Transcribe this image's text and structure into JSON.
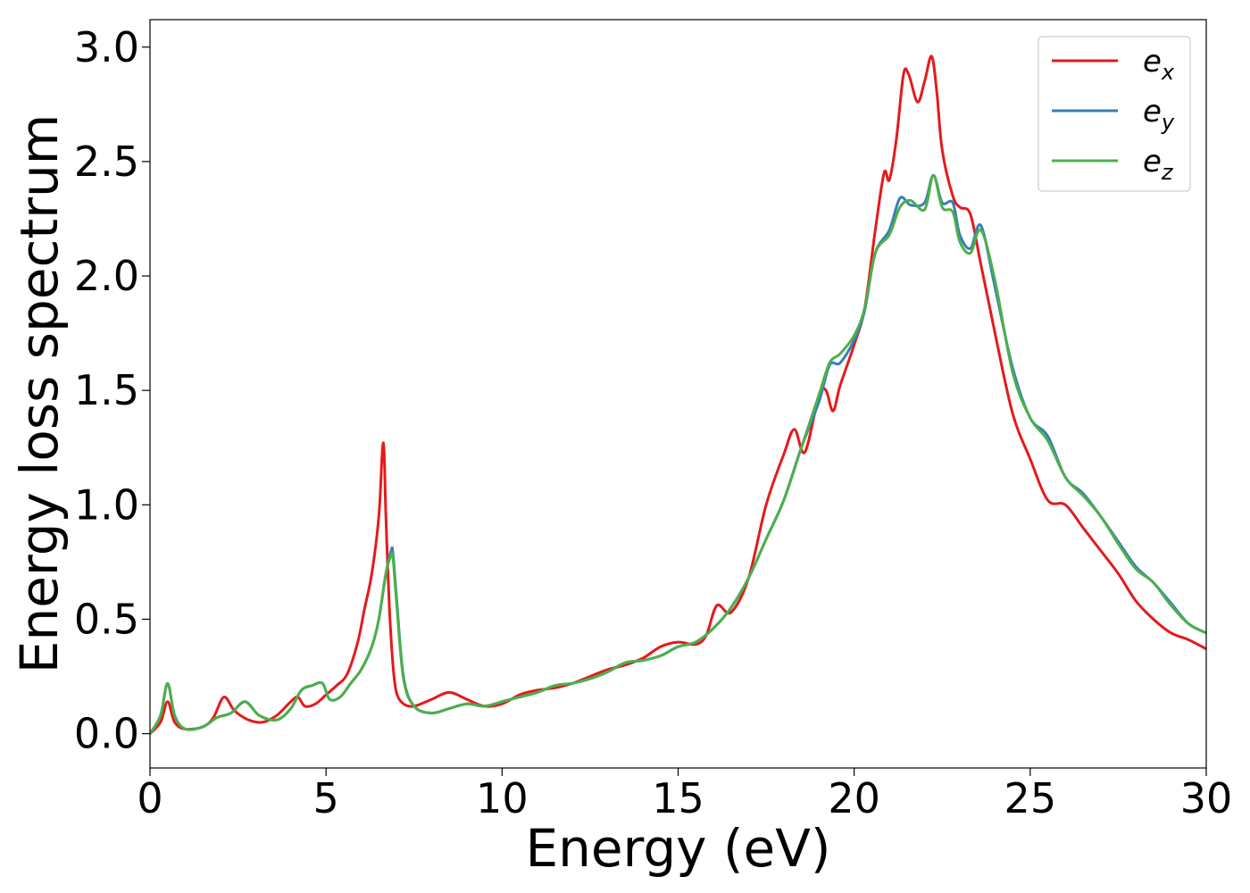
{
  "chart_data": {
    "type": "line",
    "title": "",
    "xlabel": "Energy (eV)",
    "ylabel": "Energy loss spectrum",
    "xlim": [
      0,
      30
    ],
    "ylim": [
      -0.15,
      3.12
    ],
    "xticks": [
      "0",
      "5",
      "10",
      "15",
      "20",
      "25",
      "30"
    ],
    "yticks": [
      "0.0",
      "0.5",
      "1.0",
      "1.5",
      "2.0",
      "2.5",
      "3.0"
    ],
    "grid": false,
    "legend_position": "top-right",
    "series": [
      {
        "name": "e",
        "subscript": "x",
        "color": "#e41a1c",
        "x": [
          0,
          0.3,
          0.5,
          0.7,
          1.0,
          1.5,
          1.8,
          2.1,
          2.4,
          2.8,
          3.2,
          3.6,
          4.0,
          4.2,
          4.4,
          4.7,
          5.0,
          5.3,
          5.6,
          5.9,
          6.1,
          6.3,
          6.5,
          6.6,
          6.65,
          6.7,
          6.8,
          6.9,
          7.0,
          7.2,
          7.5,
          8.0,
          8.5,
          9.0,
          9.5,
          10.0,
          10.5,
          11.0,
          11.5,
          12.0,
          12.5,
          13.0,
          13.5,
          14.0,
          14.5,
          15.0,
          15.5,
          15.8,
          16.1,
          16.5,
          17.0,
          17.5,
          18.0,
          18.3,
          18.6,
          19.0,
          19.2,
          19.4,
          19.6,
          20.0,
          20.3,
          20.6,
          20.85,
          21.0,
          21.2,
          21.4,
          21.55,
          21.8,
          22.0,
          22.2,
          22.35,
          22.5,
          22.8,
          23.0,
          23.3,
          23.6,
          24.0,
          24.5,
          25.0,
          25.5,
          26.0,
          26.5,
          27.0,
          27.5,
          28.0,
          28.5,
          29.0,
          29.5,
          30.0
        ],
        "y": [
          0.0,
          0.05,
          0.14,
          0.05,
          0.02,
          0.03,
          0.07,
          0.16,
          0.1,
          0.06,
          0.05,
          0.08,
          0.14,
          0.16,
          0.12,
          0.13,
          0.17,
          0.21,
          0.26,
          0.4,
          0.55,
          0.7,
          0.95,
          1.24,
          1.23,
          0.95,
          0.55,
          0.3,
          0.18,
          0.13,
          0.12,
          0.15,
          0.18,
          0.15,
          0.12,
          0.13,
          0.17,
          0.19,
          0.2,
          0.22,
          0.25,
          0.28,
          0.3,
          0.33,
          0.38,
          0.4,
          0.39,
          0.43,
          0.56,
          0.53,
          0.68,
          1.0,
          1.22,
          1.33,
          1.23,
          1.48,
          1.5,
          1.41,
          1.52,
          1.7,
          1.86,
          2.2,
          2.45,
          2.42,
          2.6,
          2.88,
          2.88,
          2.76,
          2.85,
          2.96,
          2.8,
          2.55,
          2.35,
          2.3,
          2.27,
          2.05,
          1.75,
          1.4,
          1.2,
          1.02,
          1.0,
          0.9,
          0.8,
          0.7,
          0.58,
          0.5,
          0.44,
          0.41,
          0.37
        ]
      },
      {
        "name": "e",
        "subscript": "y",
        "color": "#377eb8",
        "x": [
          0,
          0.3,
          0.5,
          0.7,
          1.0,
          1.5,
          1.9,
          2.3,
          2.7,
          3.1,
          3.6,
          4.0,
          4.3,
          4.6,
          4.9,
          5.1,
          5.4,
          5.7,
          6.0,
          6.3,
          6.5,
          6.7,
          6.85,
          6.9,
          7.0,
          7.2,
          7.5,
          8.0,
          8.5,
          9.0,
          9.5,
          10.0,
          10.5,
          11.0,
          11.5,
          12.0,
          12.5,
          13.0,
          13.5,
          14.0,
          14.5,
          15.0,
          15.5,
          16.0,
          16.5,
          17.0,
          17.5,
          18.0,
          18.5,
          19.0,
          19.3,
          19.6,
          20.0,
          20.3,
          20.6,
          21.0,
          21.3,
          21.6,
          22.0,
          22.25,
          22.5,
          22.8,
          23.0,
          23.3,
          23.6,
          24.0,
          24.5,
          25.0,
          25.5,
          26.0,
          26.5,
          27.0,
          27.5,
          28.0,
          28.5,
          29.0,
          29.5,
          30.0
        ],
        "y": [
          0.0,
          0.08,
          0.22,
          0.08,
          0.02,
          0.03,
          0.07,
          0.09,
          0.14,
          0.08,
          0.06,
          0.11,
          0.19,
          0.21,
          0.22,
          0.15,
          0.16,
          0.22,
          0.28,
          0.38,
          0.5,
          0.7,
          0.8,
          0.79,
          0.6,
          0.25,
          0.12,
          0.09,
          0.11,
          0.13,
          0.12,
          0.14,
          0.16,
          0.18,
          0.21,
          0.22,
          0.24,
          0.27,
          0.31,
          0.32,
          0.34,
          0.38,
          0.4,
          0.46,
          0.55,
          0.68,
          0.85,
          1.02,
          1.25,
          1.45,
          1.61,
          1.62,
          1.72,
          1.85,
          2.1,
          2.2,
          2.34,
          2.31,
          2.32,
          2.44,
          2.32,
          2.32,
          2.18,
          2.12,
          2.22,
          1.95,
          1.6,
          1.38,
          1.3,
          1.12,
          1.05,
          0.95,
          0.84,
          0.73,
          0.66,
          0.57,
          0.48,
          0.44
        ]
      },
      {
        "name": "e",
        "subscript": "z",
        "color": "#4daf4a",
        "x": [
          0,
          0.3,
          0.5,
          0.7,
          1.0,
          1.5,
          1.9,
          2.3,
          2.7,
          3.1,
          3.6,
          4.0,
          4.3,
          4.6,
          4.9,
          5.1,
          5.4,
          5.7,
          6.0,
          6.3,
          6.5,
          6.7,
          6.85,
          6.9,
          7.0,
          7.2,
          7.5,
          8.0,
          8.5,
          9.0,
          9.5,
          10.0,
          10.5,
          11.0,
          11.5,
          12.0,
          12.5,
          13.0,
          13.5,
          14.0,
          14.5,
          15.0,
          15.5,
          16.0,
          16.5,
          17.0,
          17.5,
          18.0,
          18.5,
          19.0,
          19.3,
          19.6,
          20.0,
          20.3,
          20.6,
          21.0,
          21.3,
          21.6,
          22.0,
          22.25,
          22.5,
          22.8,
          23.0,
          23.3,
          23.6,
          24.0,
          24.5,
          25.0,
          25.5,
          26.0,
          26.5,
          27.0,
          27.5,
          28.0,
          28.5,
          29.0,
          29.5,
          30.0
        ],
        "y": [
          0.0,
          0.08,
          0.22,
          0.08,
          0.02,
          0.03,
          0.07,
          0.09,
          0.14,
          0.08,
          0.06,
          0.11,
          0.19,
          0.21,
          0.22,
          0.15,
          0.16,
          0.22,
          0.28,
          0.38,
          0.5,
          0.7,
          0.78,
          0.77,
          0.58,
          0.24,
          0.12,
          0.09,
          0.11,
          0.13,
          0.12,
          0.14,
          0.16,
          0.18,
          0.21,
          0.22,
          0.24,
          0.27,
          0.31,
          0.32,
          0.34,
          0.38,
          0.4,
          0.46,
          0.55,
          0.68,
          0.85,
          1.02,
          1.25,
          1.48,
          1.62,
          1.66,
          1.74,
          1.86,
          2.1,
          2.18,
          2.3,
          2.33,
          2.29,
          2.44,
          2.3,
          2.28,
          2.15,
          2.1,
          2.2,
          1.98,
          1.58,
          1.38,
          1.28,
          1.12,
          1.04,
          0.95,
          0.83,
          0.72,
          0.66,
          0.56,
          0.48,
          0.44
        ]
      }
    ]
  }
}
